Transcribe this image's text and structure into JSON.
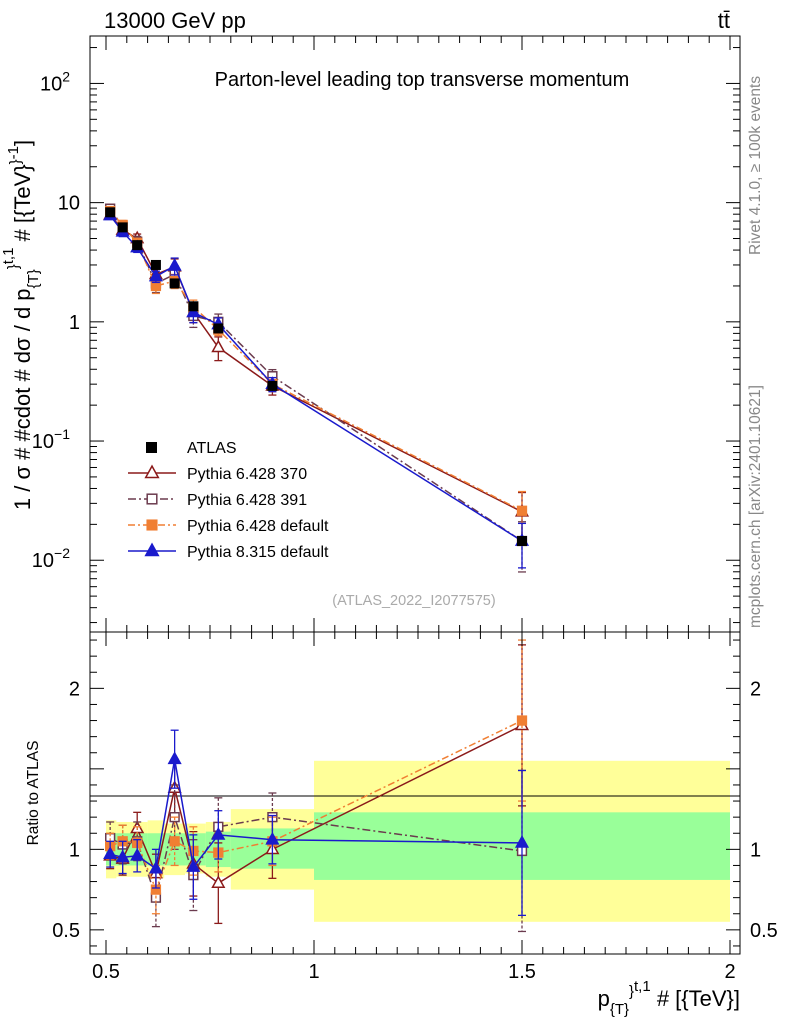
{
  "header": {
    "left": "13000 GeV pp",
    "right": "tt̄"
  },
  "side": {
    "rivet": "Rivet 4.1.0, ≥ 100k events",
    "mcplots": "mcplots.cern.ch [arXiv:2401.10621]"
  },
  "chart_data": {
    "type": "scatter",
    "title": "Parton-level leading top transverse momentum",
    "analysis_label": "(ATLAS_2022_I2077575)",
    "xlabel": "p_{T}^{t,1} # [{TeV}]",
    "ylabel": "1 / σ # #cdot # dσ / d p_{T}^{t,1} # [{TeV}^{-1}]",
    "ratio_ylabel": "Ratio to ATLAS",
    "xlim": [
      0.45,
      2.05
    ],
    "ylim": [
      0.0025,
      250
    ],
    "ratio_ylim": [
      0.35,
      2.35
    ],
    "x_ticks": [
      {
        "value": 0.5,
        "label": "0.5"
      },
      {
        "value": 1.0,
        "label": "1"
      },
      {
        "value": 1.5,
        "label": "1.5"
      },
      {
        "value": 2.0,
        "label": "2"
      }
    ],
    "y_ticks": [
      {
        "value": 0.01,
        "base": "10",
        "exp": "−2"
      },
      {
        "value": 0.1,
        "base": "10",
        "exp": "−1"
      },
      {
        "value": 1,
        "base": "1",
        "exp": ""
      },
      {
        "value": 10,
        "base": "10",
        "exp": ""
      },
      {
        "value": 100,
        "base": "10",
        "exp": "2"
      }
    ],
    "ratio_ticks": [
      {
        "value": 0.5,
        "label": "0.5"
      },
      {
        "value": 1.0,
        "label": "1"
      },
      {
        "value": 2.0,
        "label": "2"
      }
    ],
    "x": [
      0.51,
      0.54,
      0.575,
      0.62,
      0.665,
      0.71,
      0.77,
      0.9,
      1.5
    ],
    "data": {
      "name": "ATLAS",
      "values": [
        8.3,
        6.2,
        4.4,
        3.0,
        2.1,
        1.35,
        0.88,
        0.29,
        0.0145
      ]
    },
    "bands": [
      {
        "lo": 0.5,
        "hi": 0.525,
        "in": [
          0.9,
          1.1
        ],
        "out": [
          0.82,
          1.18
        ]
      },
      {
        "lo": 0.525,
        "hi": 0.56,
        "in": [
          0.9,
          1.1
        ],
        "out": [
          0.83,
          1.17
        ]
      },
      {
        "lo": 0.56,
        "hi": 0.6,
        "in": [
          0.9,
          1.1
        ],
        "out": [
          0.83,
          1.17
        ]
      },
      {
        "lo": 0.6,
        "hi": 0.64,
        "in": [
          0.9,
          1.1
        ],
        "out": [
          0.82,
          1.18
        ]
      },
      {
        "lo": 0.64,
        "hi": 0.69,
        "in": [
          0.9,
          1.1
        ],
        "out": [
          0.84,
          1.16
        ]
      },
      {
        "lo": 0.69,
        "hi": 0.74,
        "in": [
          0.9,
          1.1
        ],
        "out": [
          0.85,
          1.16
        ]
      },
      {
        "lo": 0.74,
        "hi": 0.8,
        "in": [
          0.89,
          1.11
        ],
        "out": [
          0.83,
          1.17
        ]
      },
      {
        "lo": 0.8,
        "hi": 1.0,
        "in": [
          0.88,
          1.13
        ],
        "out": [
          0.75,
          1.25
        ]
      },
      {
        "lo": 1.0,
        "hi": 2.0,
        "in": [
          0.81,
          1.23
        ],
        "out": [
          0.55,
          1.55
        ]
      }
    ],
    "series": [
      {
        "name": "Pythia 6.428 370",
        "color": "#8b1a1a",
        "marker": "triangle-open",
        "dash": "",
        "values": [
          7.9,
          5.9,
          5.0,
          2.5,
          2.9,
          1.2,
          0.61,
          0.29,
          0.0255
        ],
        "ratio": [
          0.96,
          0.94,
          1.13,
          0.85,
          1.38,
          0.91,
          0.79,
          1.0,
          1.77
        ],
        "ratio_err": [
          0.08,
          0.1,
          0.1,
          0.12,
          0.18,
          0.2,
          0.25,
          0.18,
          0.5
        ]
      },
      {
        "name": "Pythia 6.428 391",
        "color": "#6b3b4e",
        "marker": "square-open",
        "dash": "8 3 2 3",
        "values": [
          8.9,
          6.3,
          4.7,
          2.1,
          2.5,
          1.12,
          1.0,
          0.35,
          0.0145
        ],
        "ratio": [
          1.07,
          1.03,
          1.05,
          0.7,
          1.2,
          0.84,
          1.14,
          1.2,
          0.99
        ],
        "ratio_err": [
          0.1,
          0.12,
          0.12,
          0.18,
          0.2,
          0.22,
          0.18,
          0.15,
          0.5
        ]
      },
      {
        "name": "Pythia 6.428 default",
        "color": "#f07f33",
        "marker": "square-filled",
        "dash": "7 3 2 3",
        "values": [
          8.5,
          6.5,
          4.6,
          2.0,
          2.2,
          1.34,
          0.86,
          0.3,
          0.026
        ],
        "ratio": [
          1.02,
          1.05,
          1.04,
          0.75,
          1.05,
          0.99,
          0.98,
          1.05,
          1.8
        ],
        "ratio_err": [
          0.08,
          0.1,
          0.1,
          0.15,
          0.15,
          0.15,
          0.12,
          0.15,
          0.5
        ]
      },
      {
        "name": "Pythia 8.315 default",
        "color": "#1a1acc",
        "marker": "triangle-filled",
        "dash": "",
        "values": [
          7.8,
          5.7,
          4.2,
          2.4,
          2.95,
          1.2,
          0.95,
          0.3,
          0.0145
        ],
        "ratio": [
          0.97,
          0.95,
          0.96,
          0.88,
          1.56,
          0.89,
          1.09,
          1.06,
          1.04
        ],
        "ratio_err": [
          0.08,
          0.1,
          0.1,
          0.12,
          0.18,
          0.2,
          0.15,
          0.15,
          0.45
        ]
      }
    ]
  }
}
